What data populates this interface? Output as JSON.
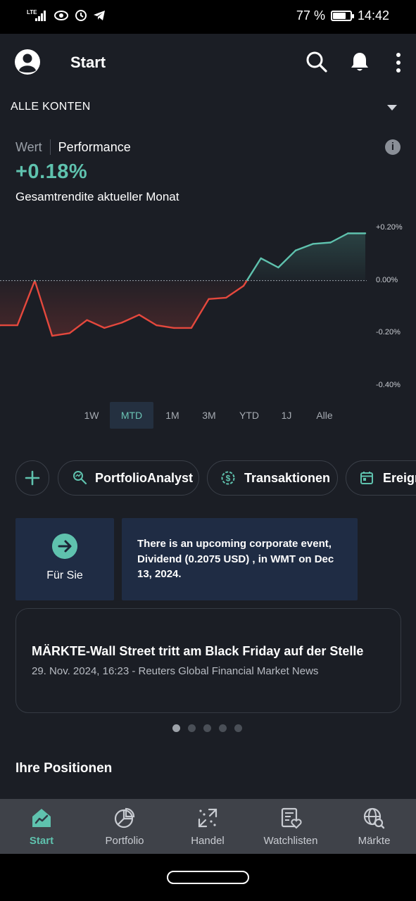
{
  "status_bar": {
    "network": "LTE",
    "battery": "77 %",
    "battery_level": 0.77,
    "time": "14:42"
  },
  "app_bar": {
    "title": "Start",
    "icons": [
      "profile-icon",
      "search-icon",
      "bell-icon",
      "more-vert-icon"
    ]
  },
  "account": {
    "label": "ALLE KONTEN"
  },
  "perf_toggle": {
    "wert": "Wert",
    "performance": "Performance"
  },
  "performance": {
    "value": "+0.18%",
    "subtitle": "Gesamtrendite aktueller Monat"
  },
  "chart_data": {
    "type": "line",
    "x": [
      1,
      2,
      3,
      4,
      5,
      6,
      7,
      8,
      9,
      10,
      11,
      12,
      13,
      14,
      15,
      16,
      17,
      18,
      19,
      20,
      21,
      22
    ],
    "values": [
      -0.17,
      -0.17,
      0.0,
      -0.21,
      -0.2,
      -0.15,
      -0.18,
      -0.16,
      -0.13,
      -0.17,
      -0.18,
      -0.18,
      -0.07,
      -0.065,
      -0.02,
      0.085,
      0.05,
      0.115,
      0.14,
      0.145,
      0.18,
      0.18
    ],
    "ylim": [
      -0.4,
      0.2
    ],
    "yticks": [
      "+0.20%",
      "0.00%",
      "-0.20%",
      "-0.40%"
    ],
    "ytick_values": [
      0.2,
      0.0,
      -0.2,
      -0.4
    ],
    "baseline": 0.0,
    "colors": {
      "positive": "#5fc2ae",
      "negative": "#e5483d",
      "baseline": "#9aa0a8"
    }
  },
  "time_ranges": {
    "items": [
      "1W",
      "MTD",
      "1M",
      "3M",
      "YTD",
      "1J",
      "Alle"
    ],
    "active": "MTD"
  },
  "chips": {
    "portfolio_analyst": "PortfolioAnalyst",
    "transactions": "Transaktionen",
    "events": "Ereignisse"
  },
  "cards": {
    "fuer_sie": "Für Sie",
    "event_text": "There is an upcoming corporate event, Dividend (0.2075 USD) , in WMT on Dec 13, 2024."
  },
  "news": {
    "headline": "MÄRKTE-Wall Street tritt am Black Friday auf der Stelle",
    "meta": "29. Nov. 2024, 16:23 - Reuters Global Financial Market News",
    "pages": 5,
    "active_page": 1
  },
  "positions": {
    "title": "Ihre Positionen"
  },
  "bottom_nav": {
    "start": "Start",
    "portfolio": "Portfolio",
    "handel": "Handel",
    "watchlisten": "Watchlisten",
    "maerkte": "Märkte",
    "active": "Start"
  },
  "colors": {
    "accent": "#5fc2ae",
    "background": "#1b1e25",
    "card": "#1f2c44",
    "nav": "#3f4249"
  }
}
